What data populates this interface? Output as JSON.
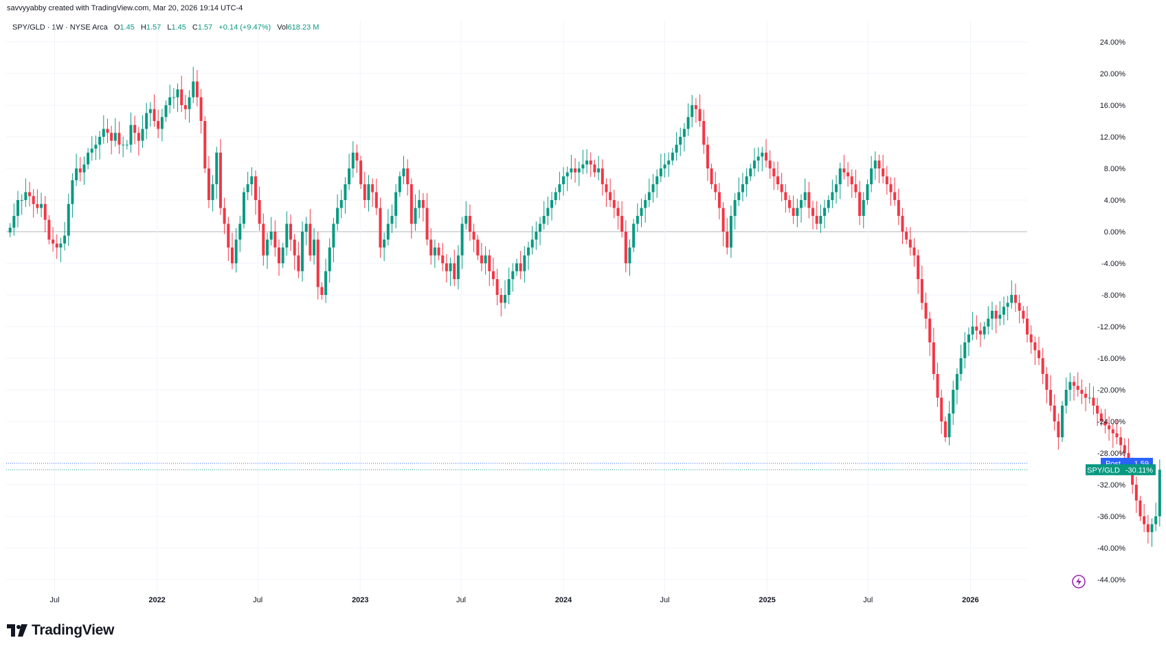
{
  "credit": "savvyyabby created with TradingView.com, Mar 20, 2026 19:14 UTC-4",
  "legend": {
    "symbol": "SPY/GLD · 1W · NYSE Arca",
    "open_label": "O",
    "open": "1.45",
    "high_label": "H",
    "high": "1.57",
    "low_label": "L",
    "low": "1.45",
    "close_label": "C",
    "close": "1.57",
    "change": "+0.14 (+9.47%)",
    "vol_label": "Vol",
    "vol": "618.23 M"
  },
  "brand": "TradingView",
  "colors": {
    "up": "#089981",
    "down": "#f23645",
    "grid": "#f0f3fa",
    "zero_line": "#b2b5be",
    "post": "#2962ff"
  },
  "chart_data": {
    "type": "candlestick",
    "symbol": "SPY/GLD",
    "interval": "1W",
    "unit": "%",
    "ylim": [
      -46,
      26
    ],
    "y_ticks": [
      24,
      20,
      16,
      12,
      8,
      4,
      0,
      -4,
      -8,
      -12,
      -16,
      -20,
      -24,
      -28,
      -32,
      -36,
      -40,
      -44
    ],
    "y_tick_labels": [
      "24.00%",
      "20.00%",
      "16.00%",
      "12.00%",
      "8.00%",
      "4.00%",
      "0.00%",
      "-4.00%",
      "-8.00%",
      "-12.00%",
      "-16.00%",
      "-20.00%",
      "-24.00%",
      "-28.00%",
      "-32.00%",
      "-36.00%",
      "-40.00%",
      "-44.00%"
    ],
    "x_range": [
      "2021-04-05",
      "2026-04-13"
    ],
    "x_ticks": [
      {
        "date": "2021-07-01",
        "label": "Jul"
      },
      {
        "date": "2022-01-01",
        "label": "2022"
      },
      {
        "date": "2022-07-01",
        "label": "Jul"
      },
      {
        "date": "2023-01-01",
        "label": "2023"
      },
      {
        "date": "2023-07-01",
        "label": "Jul"
      },
      {
        "date": "2024-01-01",
        "label": "2024"
      },
      {
        "date": "2024-07-01",
        "label": "Jul"
      },
      {
        "date": "2025-01-01",
        "label": "2025"
      },
      {
        "date": "2025-07-01",
        "label": "Jul"
      },
      {
        "date": "2026-01-01",
        "label": "2026"
      }
    ],
    "week_start": "2021-04-12",
    "closes": [
      0.5,
      2,
      4,
      4,
      5,
      4.5,
      3.5,
      3,
      3.5,
      1.5,
      -1,
      -1.5,
      -2,
      -1.5,
      -0.5,
      3.5,
      6.5,
      8,
      7.5,
      8.5,
      10,
      10.5,
      11,
      12,
      13,
      12.5,
      11.5,
      12.5,
      11,
      11,
      11,
      13.5,
      12.5,
      11.5,
      13,
      15,
      15.5,
      14,
      13,
      14.5,
      16,
      17,
      17,
      18,
      16,
      15.5,
      17,
      19,
      17,
      14,
      8,
      4,
      6,
      10,
      3,
      1,
      -2,
      -4,
      -1,
      1,
      5,
      6,
      7,
      4,
      1,
      -3,
      -1,
      0,
      -2,
      -4,
      -2,
      1,
      -1,
      -3,
      -5,
      0,
      1,
      -3,
      -1,
      -7,
      -8,
      -5,
      -2,
      1,
      3,
      4,
      6,
      8,
      10,
      9,
      6,
      4,
      6,
      5,
      3,
      -2,
      -1,
      1,
      2,
      5,
      7,
      8,
      6,
      1,
      3,
      4,
      3,
      -1,
      -3,
      -2,
      -3,
      -4,
      -5,
      -4,
      -6,
      -3,
      1,
      2,
      0,
      -1,
      -3,
      -4,
      -3,
      -5,
      -6,
      -8,
      -9,
      -8,
      -6,
      -5,
      -4,
      -5,
      -3,
      -2,
      -1,
      0,
      1,
      2,
      3,
      4,
      5,
      6,
      7,
      7.5,
      8,
      7.5,
      8,
      8.5,
      9,
      8.5,
      7.5,
      8,
      6,
      5,
      4,
      3,
      2,
      0,
      -4,
      -2,
      1,
      2,
      3,
      4,
      5,
      6,
      7,
      8,
      8.5,
      9,
      10,
      11,
      12,
      13,
      14.5,
      16,
      15.5,
      14,
      11,
      8,
      6,
      5,
      3,
      0,
      -2,
      2,
      4,
      5,
      6,
      7,
      8,
      9,
      9.5,
      10,
      9,
      8,
      7,
      6,
      5,
      4,
      3,
      2,
      3,
      4,
      5,
      3,
      2,
      1,
      2,
      3,
      4,
      5,
      6,
      8,
      7.5,
      7,
      6,
      5,
      2,
      4,
      6,
      8,
      9,
      8,
      7,
      6,
      5,
      4,
      2,
      0,
      -1,
      -2,
      -3,
      -6,
      -9,
      -11,
      -14,
      -18,
      -21,
      -24,
      -26,
      -23,
      -20,
      -18,
      -16,
      -14,
      -13,
      -12,
      -12.5,
      -13,
      -12,
      -11,
      -10,
      -11,
      -10.5,
      -9.5,
      -9,
      -8,
      -9,
      -10,
      -11,
      -13,
      -14,
      -15,
      -16,
      -18,
      -20,
      -22,
      -24,
      -26,
      -22,
      -20,
      -19,
      -19.5,
      -20,
      -20.5,
      -21,
      -21,
      -22,
      -23,
      -24,
      -24.5,
      -25,
      -25.5,
      -26,
      -27,
      -28,
      -30,
      -32,
      -34,
      -36,
      -37,
      -38,
      -37,
      -36,
      -30.11
    ],
    "post_label": "Post",
    "post_value": "1.59",
    "last_label": "SPY/GLD",
    "last_value": "-30.11%"
  }
}
